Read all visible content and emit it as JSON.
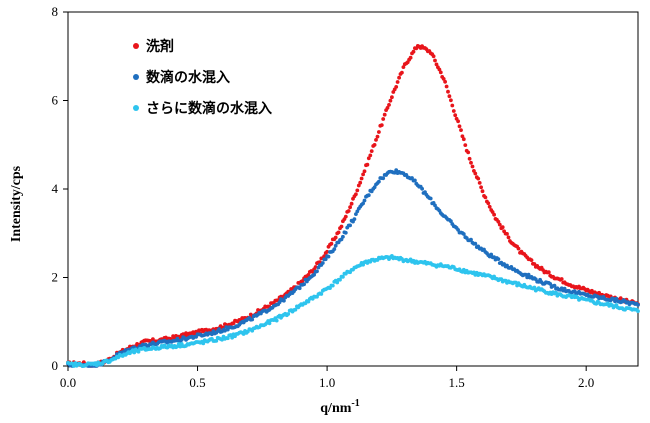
{
  "chart_data": {
    "type": "scatter",
    "xlabel": "q/nm",
    "xlabel_sup": "-1",
    "ylabel": "Intensity/cps",
    "xlim": [
      0,
      2.2
    ],
    "ylim": [
      0,
      8
    ],
    "x_ticks": [
      "0.0",
      "0.5",
      "1.0",
      "1.5",
      "2.0"
    ],
    "y_ticks": [
      "0",
      "2",
      "4",
      "6",
      "8"
    ],
    "grid": false,
    "legend_position": "top-left",
    "series": [
      {
        "name": "洗剤",
        "color": "#e8151b",
        "points": [
          [
            0.0,
            0.05
          ],
          [
            0.05,
            0.06
          ],
          [
            0.1,
            0.02
          ],
          [
            0.15,
            0.12
          ],
          [
            0.2,
            0.3
          ],
          [
            0.25,
            0.45
          ],
          [
            0.3,
            0.55
          ],
          [
            0.35,
            0.58
          ],
          [
            0.4,
            0.63
          ],
          [
            0.45,
            0.7
          ],
          [
            0.5,
            0.76
          ],
          [
            0.55,
            0.82
          ],
          [
            0.6,
            0.9
          ],
          [
            0.65,
            1.0
          ],
          [
            0.7,
            1.12
          ],
          [
            0.75,
            1.28
          ],
          [
            0.8,
            1.45
          ],
          [
            0.85,
            1.65
          ],
          [
            0.9,
            1.9
          ],
          [
            0.95,
            2.2
          ],
          [
            1.0,
            2.6
          ],
          [
            1.05,
            3.1
          ],
          [
            1.1,
            3.75
          ],
          [
            1.15,
            4.5
          ],
          [
            1.2,
            5.3
          ],
          [
            1.25,
            6.1
          ],
          [
            1.3,
            6.8
          ],
          [
            1.35,
            7.25
          ],
          [
            1.4,
            7.1
          ],
          [
            1.45,
            6.5
          ],
          [
            1.5,
            5.6
          ],
          [
            1.55,
            4.7
          ],
          [
            1.6,
            3.95
          ],
          [
            1.65,
            3.35
          ],
          [
            1.7,
            2.9
          ],
          [
            1.75,
            2.55
          ],
          [
            1.8,
            2.3
          ],
          [
            1.85,
            2.1
          ],
          [
            1.9,
            1.95
          ],
          [
            1.95,
            1.82
          ],
          [
            2.0,
            1.72
          ],
          [
            2.05,
            1.63
          ],
          [
            2.1,
            1.55
          ],
          [
            2.15,
            1.47
          ],
          [
            2.2,
            1.4
          ]
        ]
      },
      {
        "name": "数滴の水混入",
        "color": "#1f6fbf",
        "points": [
          [
            0.0,
            0.02
          ],
          [
            0.05,
            0.03
          ],
          [
            0.1,
            0.02
          ],
          [
            0.15,
            0.1
          ],
          [
            0.2,
            0.28
          ],
          [
            0.25,
            0.4
          ],
          [
            0.3,
            0.48
          ],
          [
            0.35,
            0.52
          ],
          [
            0.4,
            0.56
          ],
          [
            0.45,
            0.62
          ],
          [
            0.5,
            0.68
          ],
          [
            0.55,
            0.74
          ],
          [
            0.6,
            0.82
          ],
          [
            0.65,
            0.92
          ],
          [
            0.7,
            1.05
          ],
          [
            0.75,
            1.2
          ],
          [
            0.8,
            1.38
          ],
          [
            0.85,
            1.58
          ],
          [
            0.9,
            1.82
          ],
          [
            0.95,
            2.1
          ],
          [
            1.0,
            2.45
          ],
          [
            1.05,
            2.85
          ],
          [
            1.1,
            3.3
          ],
          [
            1.15,
            3.8
          ],
          [
            1.2,
            4.2
          ],
          [
            1.25,
            4.42
          ],
          [
            1.3,
            4.35
          ],
          [
            1.35,
            4.1
          ],
          [
            1.4,
            3.75
          ],
          [
            1.45,
            3.4
          ],
          [
            1.5,
            3.1
          ],
          [
            1.55,
            2.85
          ],
          [
            1.6,
            2.62
          ],
          [
            1.65,
            2.42
          ],
          [
            1.7,
            2.25
          ],
          [
            1.75,
            2.1
          ],
          [
            1.8,
            1.97
          ],
          [
            1.85,
            1.85
          ],
          [
            1.9,
            1.75
          ],
          [
            1.95,
            1.67
          ],
          [
            2.0,
            1.6
          ],
          [
            2.05,
            1.55
          ],
          [
            2.1,
            1.5
          ],
          [
            2.15,
            1.45
          ],
          [
            2.2,
            1.38
          ]
        ]
      },
      {
        "name": "さらに数滴の水混入",
        "color": "#2ec4ee",
        "points": [
          [
            0.0,
            0.04
          ],
          [
            0.05,
            0.02
          ],
          [
            0.1,
            0.04
          ],
          [
            0.15,
            0.1
          ],
          [
            0.2,
            0.22
          ],
          [
            0.25,
            0.32
          ],
          [
            0.3,
            0.38
          ],
          [
            0.35,
            0.42
          ],
          [
            0.4,
            0.45
          ],
          [
            0.45,
            0.48
          ],
          [
            0.5,
            0.52
          ],
          [
            0.55,
            0.57
          ],
          [
            0.6,
            0.63
          ],
          [
            0.65,
            0.7
          ],
          [
            0.7,
            0.8
          ],
          [
            0.75,
            0.92
          ],
          [
            0.8,
            1.05
          ],
          [
            0.85,
            1.2
          ],
          [
            0.9,
            1.38
          ],
          [
            0.95,
            1.55
          ],
          [
            1.0,
            1.75
          ],
          [
            1.05,
            1.97
          ],
          [
            1.1,
            2.2
          ],
          [
            1.15,
            2.35
          ],
          [
            1.2,
            2.42
          ],
          [
            1.25,
            2.45
          ],
          [
            1.3,
            2.4
          ],
          [
            1.35,
            2.35
          ],
          [
            1.4,
            2.3
          ],
          [
            1.45,
            2.26
          ],
          [
            1.5,
            2.2
          ],
          [
            1.55,
            2.12
          ],
          [
            1.6,
            2.05
          ],
          [
            1.65,
            1.98
          ],
          [
            1.7,
            1.9
          ],
          [
            1.75,
            1.82
          ],
          [
            1.8,
            1.75
          ],
          [
            1.85,
            1.68
          ],
          [
            1.9,
            1.6
          ],
          [
            1.95,
            1.55
          ],
          [
            2.0,
            1.48
          ],
          [
            2.05,
            1.42
          ],
          [
            2.1,
            1.36
          ],
          [
            2.15,
            1.3
          ],
          [
            2.2,
            1.24
          ]
        ]
      }
    ]
  }
}
